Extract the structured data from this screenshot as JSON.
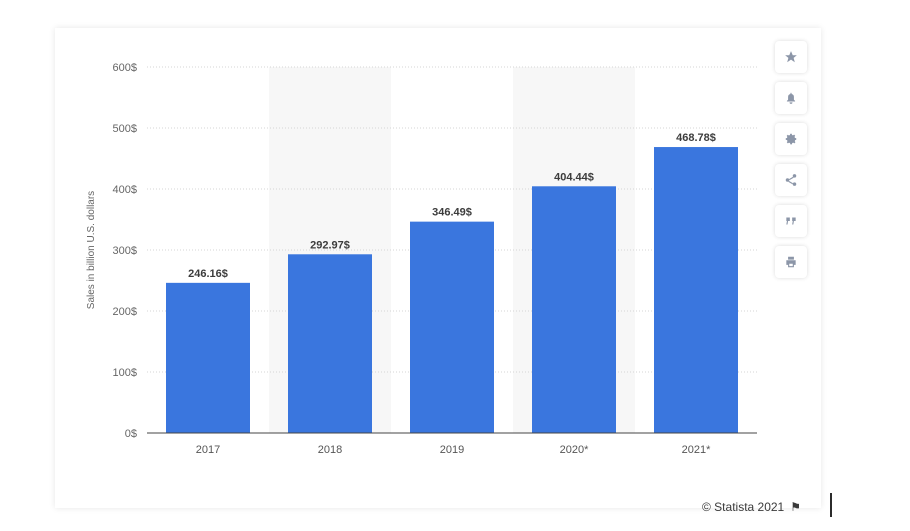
{
  "chart_data": {
    "type": "bar",
    "categories": [
      "2017",
      "2018",
      "2019",
      "2020*",
      "2021*"
    ],
    "values": [
      246.16,
      292.97,
      346.49,
      404.44,
      468.78
    ],
    "value_labels": [
      "246.16$",
      "292.97$",
      "346.49$",
      "404.44$",
      "468.78$"
    ],
    "title": "",
    "xlabel": "",
    "ylabel": "Sales in billion U.S. dollars",
    "ylim": [
      0,
      600
    ],
    "yticks": [
      0,
      100,
      200,
      300,
      400,
      500,
      600
    ],
    "ytick_labels": [
      "0$",
      "100$",
      "200$",
      "300$",
      "400$",
      "500$",
      "600$"
    ],
    "grid": true,
    "bar_color": "#3a76de",
    "band_color": "#f7f7f7"
  },
  "toolbar": {
    "buttons": [
      {
        "name": "favorite",
        "icon": "star-icon"
      },
      {
        "name": "notification",
        "icon": "bell-icon"
      },
      {
        "name": "settings",
        "icon": "gear-icon"
      },
      {
        "name": "share",
        "icon": "share-icon"
      },
      {
        "name": "cite",
        "icon": "quote-icon"
      },
      {
        "name": "print",
        "icon": "print-icon"
      }
    ]
  },
  "footer": {
    "copyright": "© Statista 2021",
    "flag_icon": "flag-icon"
  }
}
